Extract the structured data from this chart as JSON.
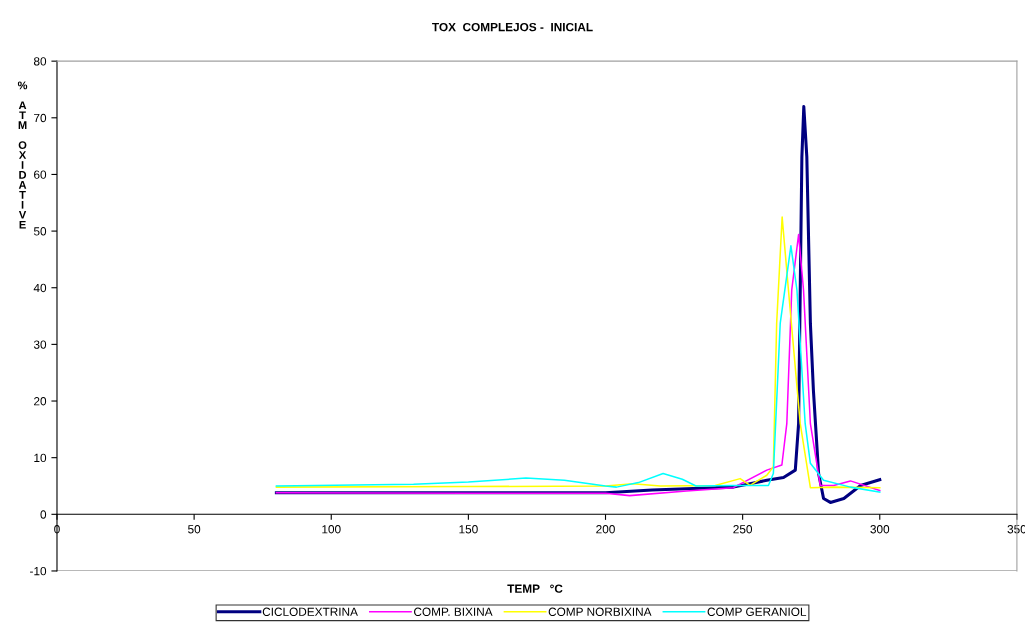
{
  "chart_data": {
    "type": "line",
    "title": "TOX  COMPLEJOS -  INICIAL",
    "xlabel": "TEMP   °C",
    "ylabel": "% ATM OXIDATIVE",
    "xlim": [
      0,
      350
    ],
    "xticks": [
      0,
      50,
      100,
      150,
      200,
      250,
      300,
      350
    ],
    "ylim": [
      -10,
      80
    ],
    "yticks": [
      -10,
      0,
      10,
      20,
      30,
      40,
      50,
      60,
      70,
      80
    ],
    "grid": false,
    "legend": "bottom",
    "marker": "none",
    "line_style": "solid",
    "series": [
      {
        "name": "CICLODEXTRINA",
        "color": "#000080",
        "x": [
          80,
          150,
          200,
          217,
          229.5,
          246.6,
          258.8,
          264.9,
          269.2,
          270.4,
          271,
          271.6,
          272.3,
          273.4,
          274.7,
          275.8,
          277.7,
          279.5,
          282,
          286.9,
          293,
          300
        ],
        "values": [
          3.8,
          3.8,
          3.8,
          4.3,
          4.5,
          4.8,
          6.0,
          6.5,
          7.8,
          16.0,
          39.6,
          63.1,
          72.0,
          63.1,
          33.7,
          21.9,
          7.2,
          2.8,
          2.1,
          2.8,
          5.1,
          6.1
        ]
      },
      {
        "name": "COMP. BIXINA",
        "color": "#ff00ff",
        "x": [
          80,
          150,
          200,
          208.8,
          229.5,
          246.6,
          258.8,
          264.3,
          266.1,
          267.9,
          270.4,
          272.2,
          274.7,
          278.3,
          283.2,
          289.3,
          300
        ],
        "values": [
          3.8,
          3.7,
          3.7,
          3.3,
          4.1,
          4.7,
          7.8,
          8.7,
          16.0,
          39.6,
          49.4,
          39.6,
          16.0,
          5.1,
          5.1,
          5.9,
          4.2
        ]
      },
      {
        "name": "COMP NORBIXINA",
        "color": "#ffff00",
        "x": [
          80,
          150,
          200,
          210,
          220,
          240,
          249.1,
          252.7,
          258.8,
          261.2,
          262.4,
          264.4,
          266.7,
          271,
          274.7,
          283.2,
          300
        ],
        "values": [
          4.8,
          4.9,
          5.0,
          5.4,
          5.0,
          5.1,
          6.3,
          5.1,
          6.9,
          8.4,
          33.7,
          52.5,
          39.6,
          16.0,
          4.7,
          4.8,
          4.7
        ]
      },
      {
        "name": "COMP GERANIOL",
        "color": "#00ffff",
        "x": [
          80,
          130,
          150,
          171,
          185,
          200,
          204,
          212,
          221,
          228,
          233,
          246.6,
          259.4,
          261.2,
          263.7,
          267.6,
          269.8,
          272.8,
          274.7,
          279.5,
          289.3,
          300
        ],
        "values": [
          5.0,
          5.3,
          5.7,
          6.4,
          6.0,
          5.0,
          4.8,
          5.6,
          7.2,
          6.2,
          5.0,
          5.1,
          5.1,
          7.2,
          33.7,
          47.4,
          39.6,
          16.0,
          9.0,
          6.0,
          4.8,
          3.9
        ]
      }
    ]
  }
}
